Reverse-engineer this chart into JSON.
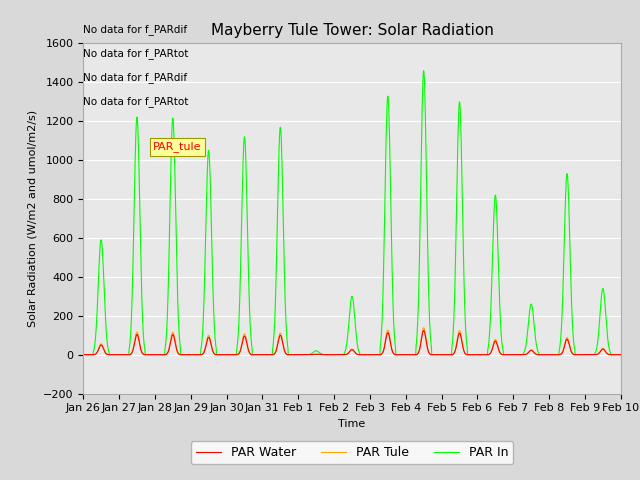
{
  "title": "Mayberry Tule Tower: Solar Radiation",
  "xlabel": "Time",
  "ylabel": "Solar Radiation (W/m2 and umol/m2/s)",
  "ylim": [
    -200,
    1600
  ],
  "yticks": [
    -200,
    0,
    200,
    400,
    600,
    800,
    1000,
    1200,
    1400,
    1600
  ],
  "x_labels": [
    "Jan 26",
    "Jan 27",
    "Jan 28",
    "Jan 29",
    "Jan 30",
    "Jan 31",
    "Feb 1",
    "Feb 2",
    "Feb 3",
    "Feb 4",
    "Feb 5",
    "Feb 6",
    "Feb 7",
    "Feb 8",
    "Feb 9",
    "Feb 10"
  ],
  "color_par_water": "#ff0000",
  "color_par_tule": "#ffa500",
  "color_par_in": "#00ff00",
  "fig_bg": "#d9d9d9",
  "plot_bg": "#e8e8e8",
  "annotations": [
    "No data for f_PARdif",
    "No data for f_PARtot",
    "No data for f_PARdif",
    "No data for f_PARtot"
  ],
  "ann_box_text": "PAR_tule",
  "legend_labels": [
    "PAR Water",
    "PAR Tule",
    "PAR In"
  ],
  "n_days": 15,
  "pts_per_day": 96,
  "par_in_peaks": [
    590,
    1220,
    1215,
    1050,
    1120,
    1170,
    20,
    300,
    1330,
    1460,
    1300,
    820,
    260,
    930,
    340
  ],
  "grid_color": "#ffffff",
  "title_fontsize": 11,
  "axis_label_fontsize": 8,
  "tick_fontsize": 8,
  "legend_fontsize": 9
}
